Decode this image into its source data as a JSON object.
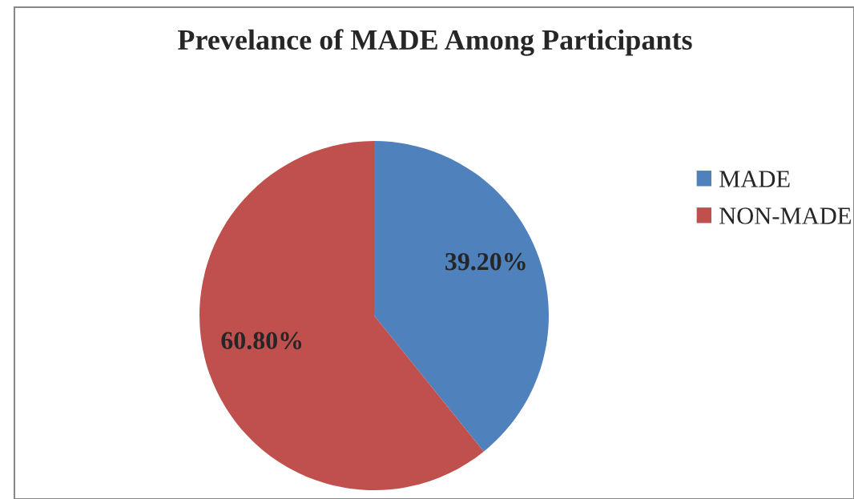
{
  "chart_data": {
    "type": "pie",
    "title": "Prevelance of MADE Among Participants",
    "categories": [
      "MADE",
      "NON-MADE"
    ],
    "values": [
      39.2,
      60.8
    ],
    "colors": [
      "#4f81bd",
      "#c0504d"
    ],
    "value_labels": [
      "39.20%",
      "60.80%"
    ],
    "legend": "right"
  }
}
